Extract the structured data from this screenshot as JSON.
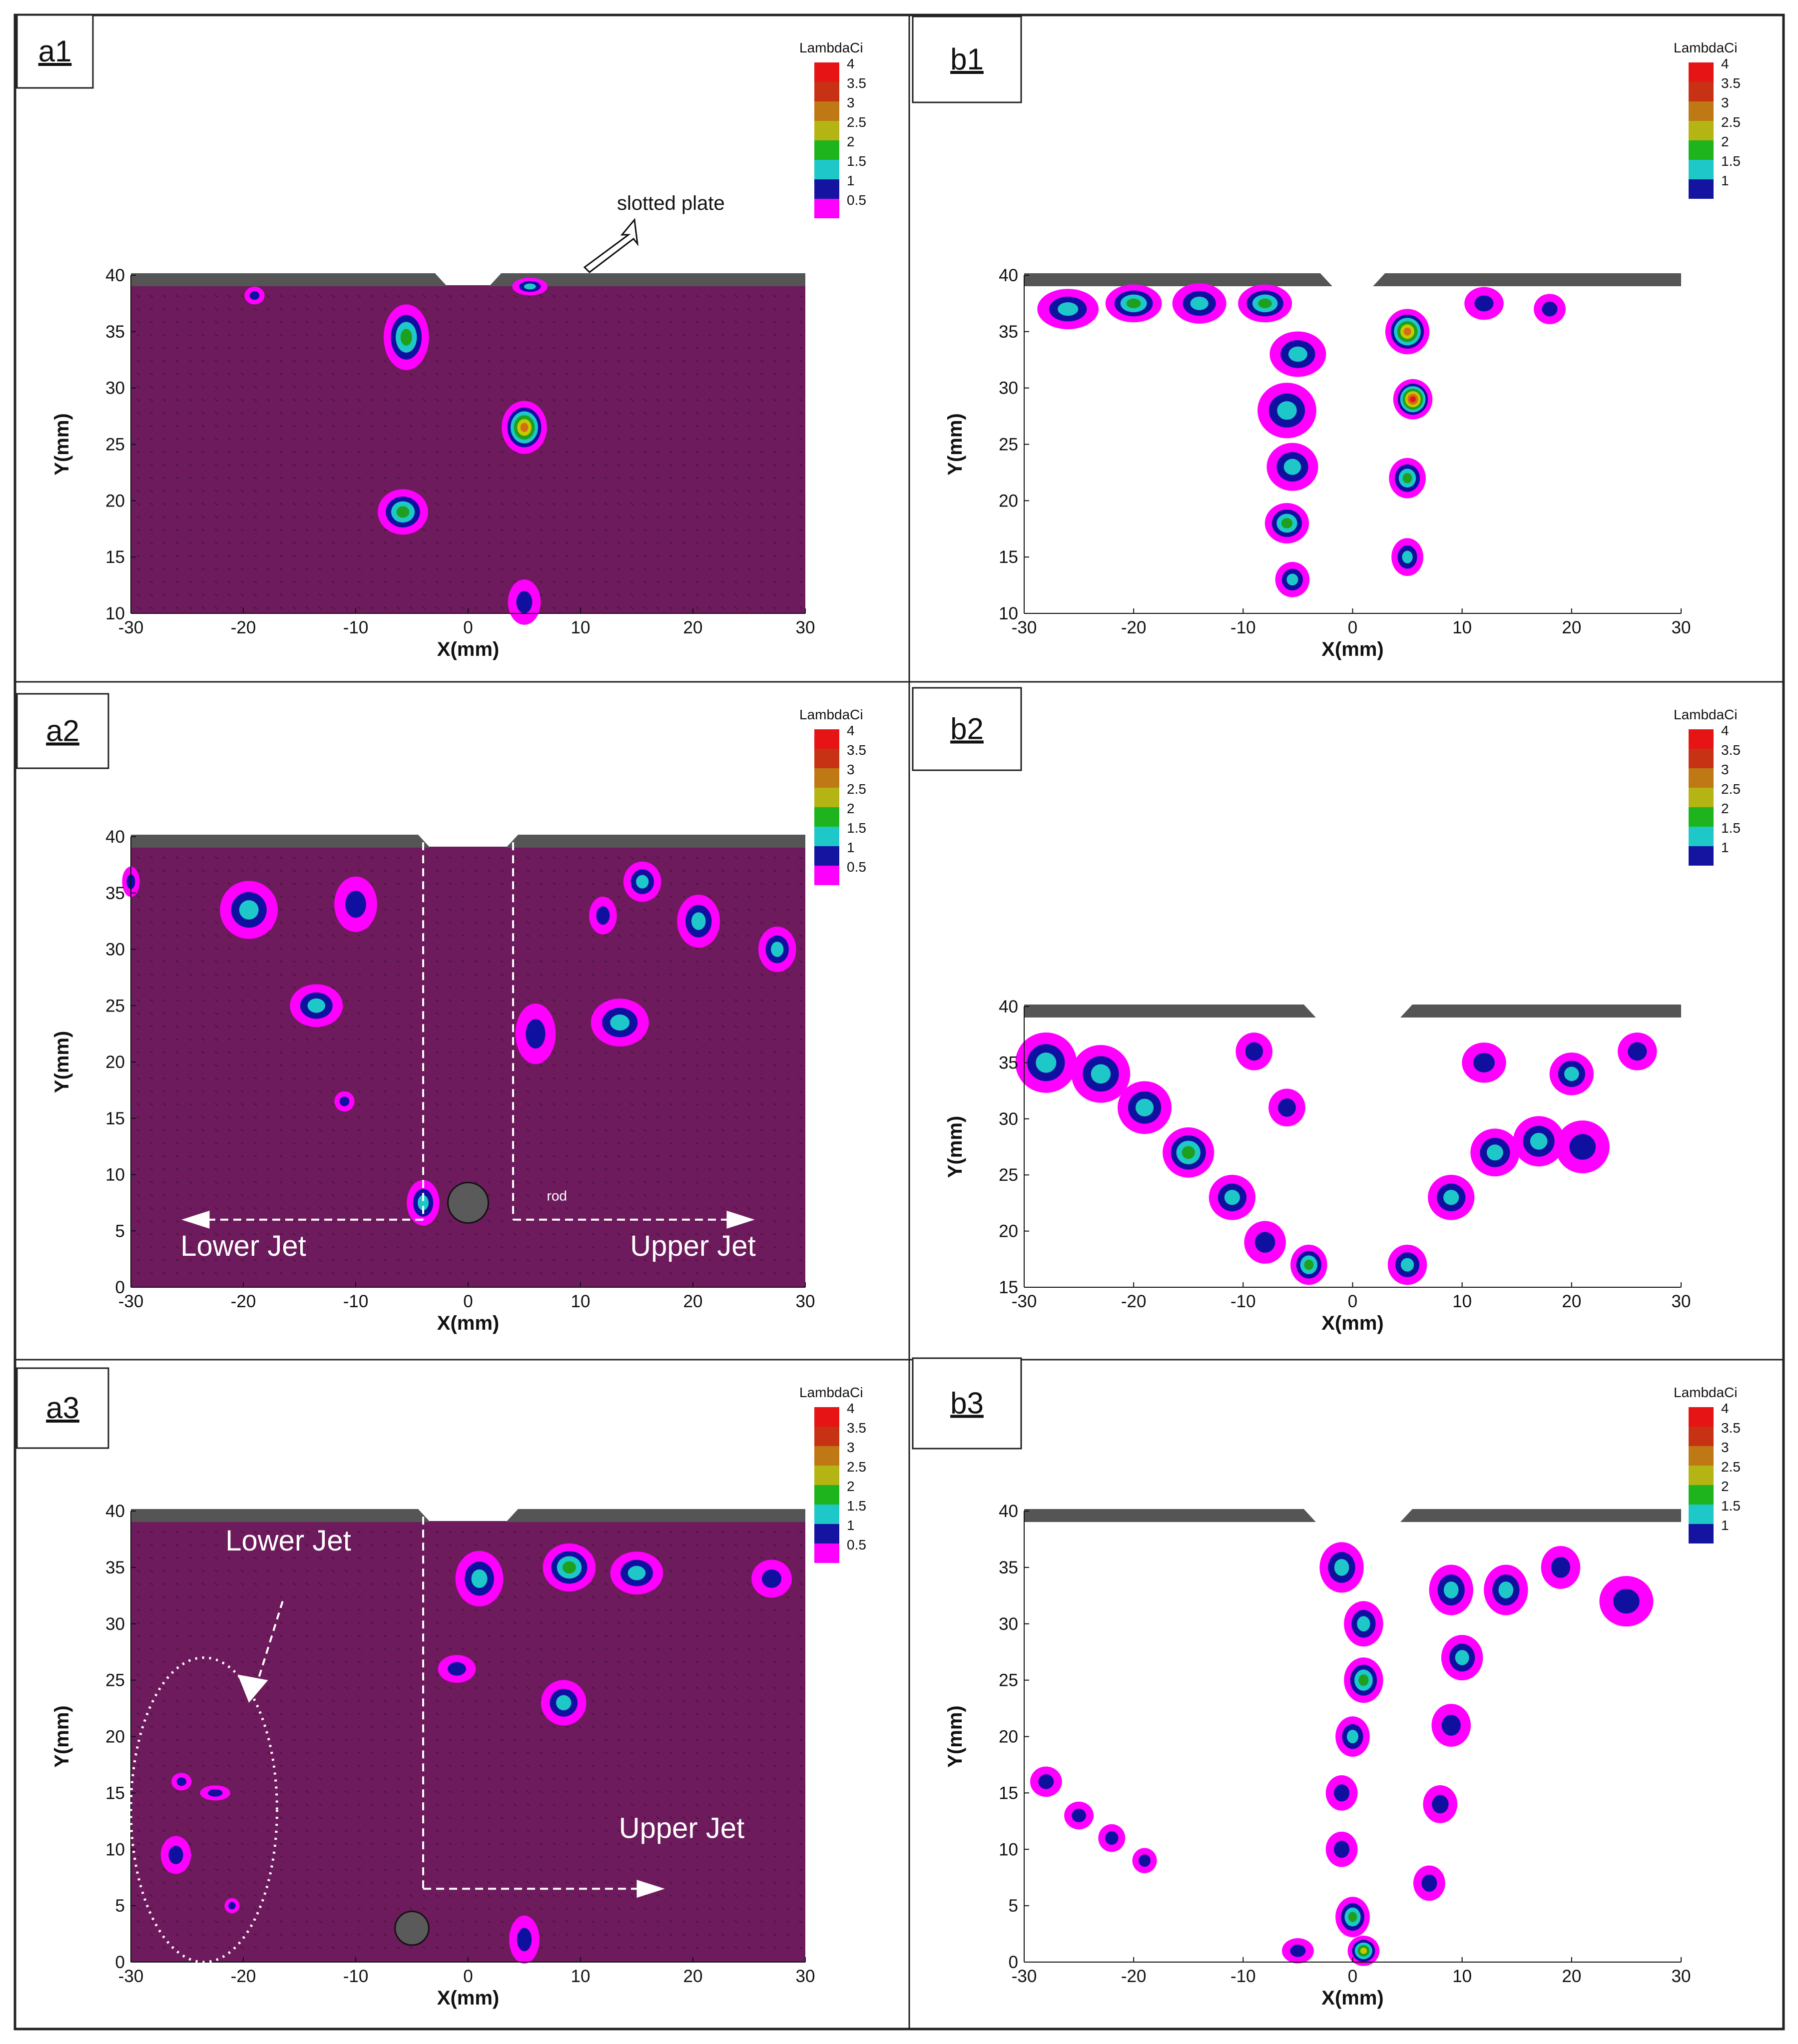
{
  "figure": {
    "colormap_title": "LambdaCi",
    "colors": {
      "background_field": "#6d1b5c",
      "plate": "#555555",
      "magenta": "#ff00ff",
      "blue": "#1010a0",
      "cyan": "#1ec8c8",
      "green": "#1ea01e",
      "yellow": "#c8c800",
      "orange": "#d26e14",
      "red": "#e61414"
    }
  },
  "chart_data": [
    {
      "id": "a1",
      "type": "contour",
      "panel_label": "a1",
      "xlabel": "X(mm)",
      "ylabel": "Y(mm)",
      "xlim": [
        -30,
        30
      ],
      "ylim": [
        10,
        40
      ],
      "xticks": [
        -30,
        -20,
        -10,
        0,
        10,
        20,
        30
      ],
      "yticks": [
        10,
        15,
        20,
        25,
        30,
        35,
        40
      ],
      "colorbar": {
        "title": "LambdaCi",
        "levels": [
          "4",
          "3.5",
          "3",
          "2.5",
          "2",
          "1.5",
          "1",
          "0.5"
        ]
      },
      "field": "filled",
      "slot": [
        -2.5,
        2.5
      ],
      "annotations": [
        {
          "text": "slotted plate",
          "x": 19,
          "y": 46
        }
      ],
      "vortices": [
        {
          "x": -5.5,
          "y": 34.5,
          "rx": 1.8,
          "ry": 2.6,
          "core": "green"
        },
        {
          "x": 5,
          "y": 26.5,
          "rx": 1.8,
          "ry": 2.1,
          "core": "orange"
        },
        {
          "x": -5.8,
          "y": 19,
          "rx": 2,
          "ry": 1.8,
          "core": "green"
        },
        {
          "x": 5,
          "y": 11,
          "rx": 1.3,
          "ry": 1.8,
          "core": "blue"
        },
        {
          "x": 5.5,
          "y": 39,
          "rx": 1.4,
          "ry": 0.7,
          "core": "cyan"
        },
        {
          "x": -19,
          "y": 38.2,
          "rx": 0.8,
          "ry": 0.7,
          "core": "magenta"
        }
      ]
    },
    {
      "id": "b1",
      "type": "contour",
      "panel_label": "b1",
      "xlabel": "X(mm)",
      "ylabel": "Y(mm)",
      "xlim": [
        -30,
        30
      ],
      "ylim": [
        10,
        40
      ],
      "xticks": [
        -30,
        -20,
        -10,
        0,
        10,
        20,
        30
      ],
      "yticks": [
        10,
        15,
        20,
        25,
        30,
        35,
        40
      ],
      "colorbar": {
        "title": "LambdaCi",
        "levels": [
          "4",
          "3.5",
          "3",
          "2.5",
          "2",
          "1.5",
          "1"
        ]
      },
      "field": "blank",
      "slot": [
        -2.5,
        2.5
      ],
      "vortices": [
        {
          "x": -26,
          "y": 37,
          "rx": 2.5,
          "ry": 1.6,
          "core": "cyan"
        },
        {
          "x": -20,
          "y": 37.5,
          "rx": 2.3,
          "ry": 1.5,
          "core": "green"
        },
        {
          "x": -14,
          "y": 37.5,
          "rx": 2.2,
          "ry": 1.6,
          "core": "cyan"
        },
        {
          "x": -8,
          "y": 37.5,
          "rx": 2.2,
          "ry": 1.5,
          "core": "green"
        },
        {
          "x": -5,
          "y": 33,
          "rx": 2.3,
          "ry": 1.8,
          "core": "cyan"
        },
        {
          "x": -6,
          "y": 28,
          "rx": 2.4,
          "ry": 2.2,
          "core": "cyan"
        },
        {
          "x": -5.5,
          "y": 23,
          "rx": 2.1,
          "ry": 1.9,
          "core": "cyan"
        },
        {
          "x": -6,
          "y": 18,
          "rx": 1.8,
          "ry": 1.6,
          "core": "green"
        },
        {
          "x": -5.5,
          "y": 13,
          "rx": 1.4,
          "ry": 1.4,
          "core": "cyan"
        },
        {
          "x": 5,
          "y": 35,
          "rx": 1.8,
          "ry": 1.8,
          "core": "orange"
        },
        {
          "x": 5.5,
          "y": 29,
          "rx": 1.6,
          "ry": 1.6,
          "core": "red"
        },
        {
          "x": 5,
          "y": 22,
          "rx": 1.5,
          "ry": 1.6,
          "core": "green"
        },
        {
          "x": 5,
          "y": 15,
          "rx": 1.3,
          "ry": 1.5,
          "core": "cyan"
        },
        {
          "x": 12,
          "y": 37.5,
          "rx": 1.6,
          "ry": 1.3,
          "core": "blue"
        },
        {
          "x": 18,
          "y": 37,
          "rx": 1.3,
          "ry": 1.2,
          "core": "blue"
        }
      ]
    },
    {
      "id": "a2",
      "type": "contour",
      "panel_label": "a2",
      "xlabel": "X(mm)",
      "ylabel": "Y(mm)",
      "xlim": [
        -30,
        30
      ],
      "ylim": [
        0,
        40
      ],
      "xticks": [
        -30,
        -20,
        -10,
        0,
        10,
        20,
        30
      ],
      "yticks": [
        0,
        5,
        10,
        15,
        20,
        25,
        30,
        35,
        40
      ],
      "colorbar": {
        "title": "LambdaCi",
        "levels": [
          "4",
          "3.5",
          "3",
          "2.5",
          "2",
          "1.5",
          "1",
          "0.5"
        ]
      },
      "field": "filled",
      "slot": [
        -4,
        4
      ],
      "rod": {
        "x": 0,
        "y": 7.5,
        "r": 1.8
      },
      "annotations": [
        {
          "text": "Lower Jet",
          "x": -20,
          "y": 2.8
        },
        {
          "text": "Upper Jet",
          "x": 20,
          "y": 2.8
        },
        {
          "text": "rod",
          "x": 7,
          "y": 7.7
        }
      ],
      "vortices": [
        {
          "x": -19.5,
          "y": 33.5,
          "rx": 2.3,
          "ry": 2.3,
          "core": "cyan"
        },
        {
          "x": -10,
          "y": 34,
          "rx": 1.7,
          "ry": 2.2,
          "core": "blue"
        },
        {
          "x": -13.5,
          "y": 25,
          "rx": 2.1,
          "ry": 1.7,
          "core": "cyan"
        },
        {
          "x": -11,
          "y": 16.5,
          "rx": 0.8,
          "ry": 0.8,
          "core": "blue"
        },
        {
          "x": -4,
          "y": 7.5,
          "rx": 1.3,
          "ry": 1.8,
          "core": "cyan"
        },
        {
          "x": 6,
          "y": 22.5,
          "rx": 1.6,
          "ry": 2.4,
          "core": "blue"
        },
        {
          "x": 13.5,
          "y": 23.5,
          "rx": 2.3,
          "ry": 1.9,
          "core": "cyan"
        },
        {
          "x": 12,
          "y": 33,
          "rx": 1.1,
          "ry": 1.5,
          "core": "blue"
        },
        {
          "x": 15.5,
          "y": 36,
          "rx": 1.5,
          "ry": 1.6,
          "core": "cyan"
        },
        {
          "x": 20.5,
          "y": 32.5,
          "rx": 1.7,
          "ry": 2.1,
          "core": "cyan"
        },
        {
          "x": 27.5,
          "y": 30,
          "rx": 1.5,
          "ry": 1.8,
          "core": "cyan"
        },
        {
          "x": -30,
          "y": 36,
          "rx": 0.7,
          "ry": 1.2,
          "core": "blue"
        }
      ]
    },
    {
      "id": "b2",
      "type": "contour",
      "panel_label": "b2",
      "xlabel": "X(mm)",
      "ylabel": "Y(mm)",
      "xlim": [
        -30,
        30
      ],
      "ylim": [
        15,
        40
      ],
      "xticks": [
        -30,
        -20,
        -10,
        0,
        10,
        20,
        30
      ],
      "yticks": [
        15,
        20,
        25,
        30,
        35,
        40
      ],
      "colorbar": {
        "title": "LambdaCi",
        "levels": [
          "4",
          "3.5",
          "3",
          "2.5",
          "2",
          "1.5",
          "1"
        ]
      },
      "field": "blank",
      "slot": [
        -4,
        5
      ],
      "vortices": [
        {
          "x": -28,
          "y": 35,
          "rx": 2.5,
          "ry": 2.4,
          "core": "cyan"
        },
        {
          "x": -23,
          "y": 34,
          "rx": 2.4,
          "ry": 2.3,
          "core": "cyan"
        },
        {
          "x": -19,
          "y": 31,
          "rx": 2.2,
          "ry": 2.1,
          "core": "cyan"
        },
        {
          "x": -15,
          "y": 27,
          "rx": 2.1,
          "ry": 2,
          "core": "green"
        },
        {
          "x": -11,
          "y": 23,
          "rx": 1.9,
          "ry": 1.8,
          "core": "cyan"
        },
        {
          "x": -8,
          "y": 19,
          "rx": 1.7,
          "ry": 1.7,
          "core": "blue"
        },
        {
          "x": -4,
          "y": 17,
          "rx": 1.5,
          "ry": 1.6,
          "core": "green"
        },
        {
          "x": -9,
          "y": 36,
          "rx": 1.5,
          "ry": 1.5,
          "core": "blue"
        },
        {
          "x": -6,
          "y": 31,
          "rx": 1.5,
          "ry": 1.5,
          "core": "blue"
        },
        {
          "x": 5,
          "y": 17,
          "rx": 1.6,
          "ry": 1.6,
          "core": "cyan"
        },
        {
          "x": 9,
          "y": 23,
          "rx": 1.9,
          "ry": 1.8,
          "core": "cyan"
        },
        {
          "x": 13,
          "y": 27,
          "rx": 2,
          "ry": 1.9,
          "core": "cyan"
        },
        {
          "x": 17,
          "y": 28,
          "rx": 2.1,
          "ry": 2,
          "core": "cyan"
        },
        {
          "x": 21,
          "y": 27.5,
          "rx": 2.2,
          "ry": 2.1,
          "core": "blue"
        },
        {
          "x": 12,
          "y": 35,
          "rx": 1.8,
          "ry": 1.6,
          "core": "blue"
        },
        {
          "x": 20,
          "y": 34,
          "rx": 1.8,
          "ry": 1.7,
          "core": "cyan"
        },
        {
          "x": 26,
          "y": 36,
          "rx": 1.6,
          "ry": 1.5,
          "core": "blue"
        }
      ]
    },
    {
      "id": "a3",
      "type": "contour",
      "panel_label": "a3",
      "xlabel": "X(mm)",
      "ylabel": "Y(mm)",
      "xlim": [
        -30,
        30
      ],
      "ylim": [
        0,
        40
      ],
      "xticks": [
        -30,
        -20,
        -10,
        0,
        10,
        20,
        30
      ],
      "yticks": [
        0,
        5,
        10,
        15,
        20,
        25,
        30,
        35,
        40
      ],
      "colorbar": {
        "title": "LambdaCi",
        "levels": [
          "4",
          "3.5",
          "3",
          "2.5",
          "2",
          "1.5",
          "1",
          "0.5"
        ]
      },
      "field": "filled",
      "slot": [
        -4,
        4
      ],
      "rod": {
        "x": -5,
        "y": 3,
        "r": 1.5
      },
      "annotations": [
        {
          "text": "Lower Jet",
          "x": -16,
          "y": 36.5
        },
        {
          "text": "Upper Jet",
          "x": 19,
          "y": 11
        }
      ],
      "vortices": [
        {
          "x": 1,
          "y": 34,
          "rx": 1.9,
          "ry": 2.2,
          "core": "cyan"
        },
        {
          "x": 9,
          "y": 35,
          "rx": 2.1,
          "ry": 1.9,
          "core": "green"
        },
        {
          "x": 15,
          "y": 34.5,
          "rx": 2.1,
          "ry": 1.7,
          "core": "cyan"
        },
        {
          "x": 27,
          "y": 34,
          "rx": 1.6,
          "ry": 1.5,
          "core": "blue"
        },
        {
          "x": -1,
          "y": 26,
          "rx": 1.5,
          "ry": 1.1,
          "core": "blue"
        },
        {
          "x": 8.5,
          "y": 23,
          "rx": 1.8,
          "ry": 1.8,
          "core": "cyan"
        },
        {
          "x": 5,
          "y": 2,
          "rx": 1.2,
          "ry": 1.9,
          "core": "blue"
        },
        {
          "x": -26,
          "y": 9.5,
          "rx": 1.2,
          "ry": 1.5,
          "core": "blue"
        },
        {
          "x": -25.5,
          "y": 16,
          "rx": 0.8,
          "ry": 0.7,
          "core": "blue"
        },
        {
          "x": -22.5,
          "y": 15,
          "rx": 1.2,
          "ry": 0.6,
          "core": "magenta"
        },
        {
          "x": -21,
          "y": 5,
          "rx": 0.6,
          "ry": 0.6,
          "core": "magenta"
        }
      ]
    },
    {
      "id": "b3",
      "type": "contour",
      "panel_label": "b3",
      "xlabel": "X(mm)",
      "ylabel": "Y(mm)",
      "xlim": [
        -30,
        30
      ],
      "ylim": [
        0,
        40
      ],
      "xticks": [
        -30,
        -20,
        -10,
        0,
        10,
        20,
        30
      ],
      "yticks": [
        0,
        5,
        10,
        15,
        20,
        25,
        30,
        35,
        40
      ],
      "colorbar": {
        "title": "LambdaCi",
        "levels": [
          "4",
          "3.5",
          "3",
          "2.5",
          "2",
          "1.5",
          "1"
        ]
      },
      "field": "blank",
      "slot": [
        -4,
        5
      ],
      "vortices": [
        {
          "x": -1,
          "y": 35,
          "rx": 1.8,
          "ry": 2,
          "core": "cyan"
        },
        {
          "x": 1,
          "y": 30,
          "rx": 1.6,
          "ry": 1.8,
          "core": "cyan"
        },
        {
          "x": 1,
          "y": 25,
          "rx": 1.6,
          "ry": 1.8,
          "core": "green"
        },
        {
          "x": 0,
          "y": 20,
          "rx": 1.4,
          "ry": 1.6,
          "core": "cyan"
        },
        {
          "x": -1,
          "y": 15,
          "rx": 1.3,
          "ry": 1.4,
          "core": "blue"
        },
        {
          "x": -1,
          "y": 10,
          "rx": 1.3,
          "ry": 1.4,
          "core": "blue"
        },
        {
          "x": 0,
          "y": 4,
          "rx": 1.4,
          "ry": 1.6,
          "core": "green"
        },
        {
          "x": 1,
          "y": 1,
          "rx": 1.3,
          "ry": 1.2,
          "core": "yellow"
        },
        {
          "x": 9,
          "y": 33,
          "rx": 1.8,
          "ry": 2,
          "core": "cyan"
        },
        {
          "x": 10,
          "y": 27,
          "rx": 1.7,
          "ry": 1.8,
          "core": "cyan"
        },
        {
          "x": 9,
          "y": 21,
          "rx": 1.6,
          "ry": 1.7,
          "core": "blue"
        },
        {
          "x": 8,
          "y": 14,
          "rx": 1.4,
          "ry": 1.5,
          "core": "blue"
        },
        {
          "x": 7,
          "y": 7,
          "rx": 1.3,
          "ry": 1.4,
          "core": "blue"
        },
        {
          "x": 14,
          "y": 33,
          "rx": 1.8,
          "ry": 2,
          "core": "cyan"
        },
        {
          "x": 19,
          "y": 35,
          "rx": 1.6,
          "ry": 1.7,
          "core": "blue"
        },
        {
          "x": 25,
          "y": 32,
          "rx": 2.2,
          "ry": 2,
          "core": "blue"
        },
        {
          "x": -28,
          "y": 16,
          "rx": 1.3,
          "ry": 1.2,
          "core": "blue"
        },
        {
          "x": -25,
          "y": 13,
          "rx": 1.2,
          "ry": 1.1,
          "core": "blue"
        },
        {
          "x": -22,
          "y": 11,
          "rx": 1.1,
          "ry": 1.1,
          "core": "blue"
        },
        {
          "x": -19,
          "y": 9,
          "rx": 1,
          "ry": 1,
          "core": "blue"
        },
        {
          "x": -5,
          "y": 1,
          "rx": 1.3,
          "ry": 1,
          "core": "blue"
        }
      ]
    }
  ]
}
